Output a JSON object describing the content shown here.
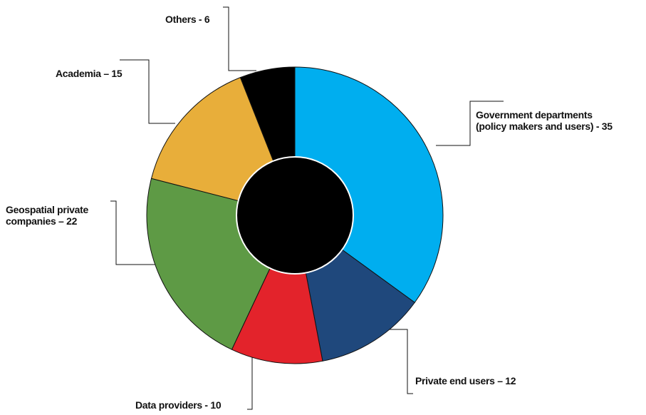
{
  "chart_data": {
    "type": "pie",
    "donut": true,
    "title": "",
    "center_color": "#000000",
    "slices": [
      {
        "label_lines": [
          "Government departments",
          "(policy makers and users)  - 35"
        ],
        "value": 35,
        "color": "#00AEEF"
      },
      {
        "label_lines": [
          "Private end users – 12"
        ],
        "value": 12,
        "color": "#1F487C"
      },
      {
        "label_lines": [
          "Data providers  - 10"
        ],
        "value": 10,
        "color": "#E3232B"
      },
      {
        "label_lines": [
          "Geospatial private",
          "companies – 22"
        ],
        "value": 22,
        "color": "#5E9A45"
      },
      {
        "label_lines": [
          "Academia – 15"
        ],
        "value": 15,
        "color": "#E8AE3A"
      },
      {
        "label_lines": [
          "Others  - 6"
        ],
        "value": 6,
        "color": "#000000"
      }
    ]
  }
}
